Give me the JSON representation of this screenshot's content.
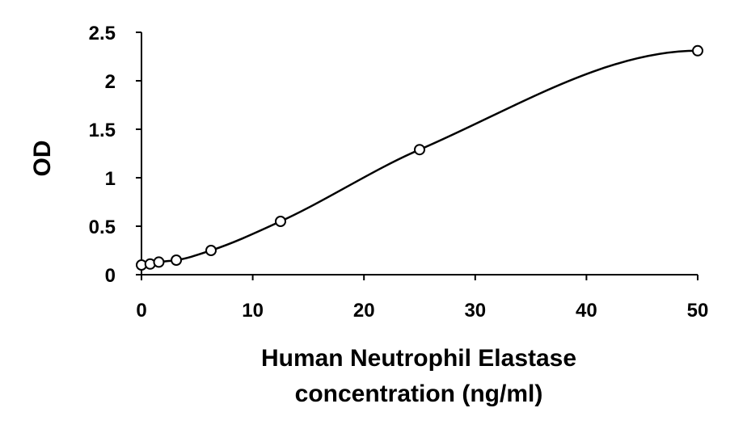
{
  "chart_data": {
    "type": "scatter",
    "title": "",
    "xlabel_lines": [
      "Human Neutrophil Elastase",
      "concentration (ng/ml)"
    ],
    "ylabel": "OD",
    "xlim": [
      0,
      50
    ],
    "ylim": [
      0,
      2.5
    ],
    "xticks": [
      "0",
      "10",
      "20",
      "30",
      "40",
      "50"
    ],
    "yticks": [
      "0",
      "0.5",
      "1",
      "1.5",
      "2",
      "2.5"
    ],
    "grid": false,
    "legend": "none",
    "series": [
      {
        "x": [
          0,
          0.78,
          1.56,
          3.13,
          6.25,
          12.5,
          25,
          50
        ],
        "y": [
          0.1,
          0.11,
          0.13,
          0.15,
          0.25,
          0.55,
          1.29,
          2.31
        ],
        "marker": "open-circle",
        "fit_line": "smooth-curve"
      }
    ],
    "colors": {
      "line": "#000000",
      "marker_fill": "#ffffff",
      "marker_stroke": "#000000"
    }
  }
}
